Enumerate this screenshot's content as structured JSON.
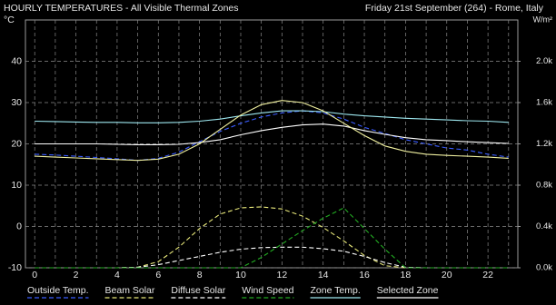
{
  "chart_data": {
    "type": "line",
    "title": "HOURLY TEMPERATURES - All Visible Thermal Zones",
    "subtitle": "Friday 21st September (264) - Rome, Italy",
    "y_label": "°C",
    "y2_label": "W/m²",
    "x": [
      0,
      1,
      2,
      3,
      4,
      5,
      6,
      7,
      8,
      9,
      10,
      11,
      12,
      13,
      14,
      15,
      16,
      17,
      18,
      19,
      20,
      21,
      22,
      23
    ],
    "xlim": [
      -0.45,
      23.45
    ],
    "xticks": [
      0,
      2,
      4,
      6,
      8,
      10,
      12,
      14,
      16,
      18,
      20,
      22
    ],
    "ylim": [
      -10,
      50
    ],
    "yticks": [
      -10,
      0,
      10,
      20,
      30,
      40
    ],
    "y2lim": [
      0,
      2400
    ],
    "y2ticks": [
      {
        "value": 0,
        "label": "0.0k"
      },
      {
        "value": 400,
        "label": "0.4k"
      },
      {
        "value": 800,
        "label": "0.8k"
      },
      {
        "value": 1200,
        "label": "1.2k"
      },
      {
        "value": 1600,
        "label": "1.6k"
      },
      {
        "value": 2000,
        "label": "2.0k"
      }
    ],
    "grid": true,
    "series": [
      {
        "name": "Outside Temp.",
        "color": "#3a5cff",
        "dashed": true,
        "values": [
          17.5,
          17.3,
          17,
          16.7,
          16.4,
          16,
          16.5,
          18,
          20.5,
          23,
          25,
          26.5,
          27.5,
          28,
          27.5,
          26,
          24,
          22.5,
          21,
          20,
          19,
          18.5,
          17.5,
          16.8
        ]
      },
      {
        "name": "Beam Solar",
        "color": "#e8e87a",
        "dashed": true,
        "axis": "y2",
        "values": [
          0,
          0,
          0,
          0,
          0,
          5,
          60,
          200,
          380,
          520,
          580,
          590,
          570,
          500,
          390,
          260,
          120,
          20,
          0,
          0,
          0,
          0,
          0,
          0
        ]
      },
      {
        "name": "Diffuse Solar",
        "color": "#ffffff",
        "dashed": true,
        "axis": "y2",
        "values": [
          0,
          0,
          0,
          0,
          0,
          5,
          30,
          70,
          110,
          150,
          180,
          195,
          200,
          200,
          185,
          160,
          110,
          50,
          5,
          0,
          0,
          0,
          0,
          0
        ]
      },
      {
        "name": "Wind Speed",
        "color": "#22aa22",
        "dashed": true,
        "axis": "y2",
        "values": [
          0,
          0,
          0,
          0,
          0,
          0,
          0,
          0,
          0,
          0,
          0,
          100,
          230,
          360,
          480,
          580,
          380,
          180,
          0,
          0,
          0,
          0,
          0,
          0
        ]
      },
      {
        "name": "Zone Temp.",
        "color": "#9ee8f0",
        "dashed": false,
        "values": [
          25.5,
          25.4,
          25.3,
          25.2,
          25.2,
          25.1,
          25.1,
          25.2,
          25.5,
          26,
          26.8,
          27.5,
          28,
          28,
          27.8,
          27.2,
          26.8,
          26.5,
          26.2,
          26,
          25.8,
          25.6,
          25.5,
          25.2
        ]
      },
      {
        "name": "Selected Zone",
        "color": "#ffffff",
        "dashed": false,
        "values": [
          20,
          20,
          20,
          20,
          19.9,
          19.8,
          19.8,
          19.9,
          20.3,
          21,
          22.2,
          23.2,
          24,
          24.6,
          24.8,
          24.3,
          23.2,
          22.3,
          21.5,
          21,
          20.8,
          20.5,
          20.3,
          20.1
        ]
      },
      {
        "color": "#f0f0a0",
        "dashed": false,
        "values": [
          17,
          16.8,
          16.6,
          16.4,
          16.2,
          16,
          16.3,
          17.5,
          20,
          23.5,
          27,
          29.5,
          30.5,
          30,
          28,
          25,
          22,
          19.5,
          18.2,
          17.5,
          17.2,
          17,
          16.8,
          16.5
        ]
      }
    ]
  }
}
